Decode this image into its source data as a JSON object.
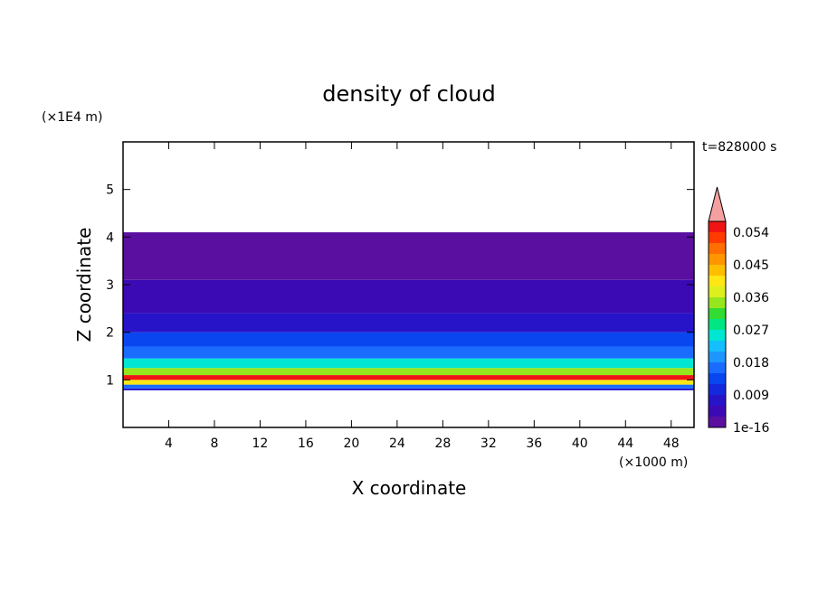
{
  "chart_data": {
    "type": "heatmap",
    "title": "density of cloud",
    "xlabel": "X coordinate",
    "ylabel": "Z coordinate",
    "x_unit": "(×1000 m)",
    "y_unit": "(×1E4 m)",
    "time_label": "t=828000 s",
    "xlim": [
      0,
      50
    ],
    "ylim": [
      0,
      6
    ],
    "x_ticks": [
      4,
      8,
      12,
      16,
      20,
      24,
      28,
      32,
      36,
      40,
      44,
      48
    ],
    "y_ticks": [
      1,
      2,
      3,
      4,
      5
    ],
    "colorbar": {
      "labels": [
        "1e-16",
        "0.009",
        "0.018",
        "0.027",
        "0.036",
        "0.045",
        "0.054"
      ],
      "label_levels": [
        0,
        0.009,
        0.018,
        0.027,
        0.036,
        0.045,
        0.054
      ],
      "step": 0.003,
      "colors": [
        "#5a0fa0",
        "#3c0ab4",
        "#2814c8",
        "#1428dc",
        "#0a46f0",
        "#1a6cff",
        "#1e96ff",
        "#14beff",
        "#00e6d2",
        "#00e682",
        "#32dc32",
        "#96e61e",
        "#dcf01e",
        "#ffe614",
        "#ffbe00",
        "#ff9600",
        "#ff6e00",
        "#ff3c00",
        "#f01414"
      ],
      "over_color": "#f5a0a0"
    },
    "layers": [
      {
        "z_range": [
          0.78,
          0.82
        ],
        "level": 0.006
      },
      {
        "z_range": [
          0.82,
          0.9
        ],
        "level": 0.018
      },
      {
        "z_range": [
          0.9,
          1.0
        ],
        "level": 0.04
      },
      {
        "z_range": [
          1.0,
          1.1
        ],
        "level": 0.055
      },
      {
        "z_range": [
          1.1,
          1.25
        ],
        "level": 0.035
      },
      {
        "z_range": [
          1.25,
          1.45
        ],
        "level": 0.024
      },
      {
        "z_range": [
          1.45,
          1.7
        ],
        "level": 0.018
      },
      {
        "z_range": [
          1.7,
          2.0
        ],
        "level": 0.013
      },
      {
        "z_range": [
          2.0,
          2.4
        ],
        "level": 0.008
      },
      {
        "z_range": [
          2.4,
          3.1
        ],
        "level": 0.004
      },
      {
        "z_range": [
          3.1,
          4.1
        ],
        "level": 0.0005
      }
    ]
  }
}
